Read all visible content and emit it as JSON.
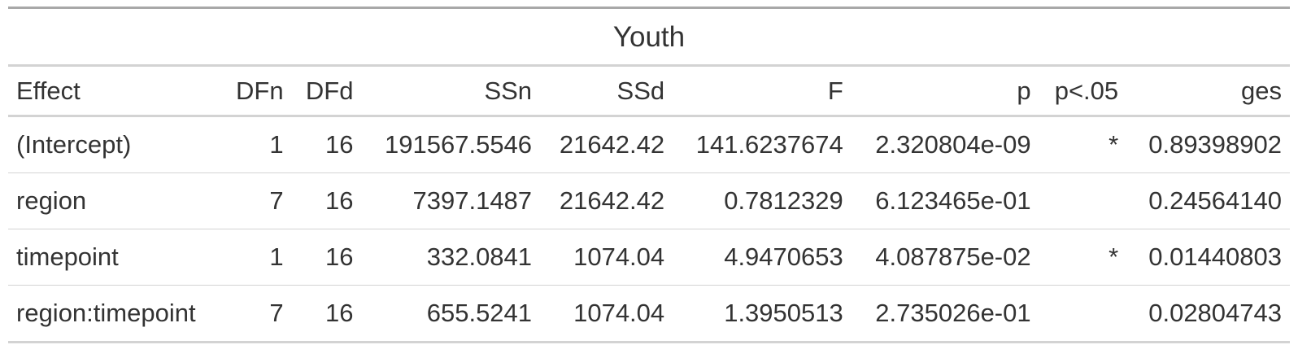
{
  "table": {
    "title": "Youth",
    "columns": [
      {
        "label": "Effect",
        "align": "left"
      },
      {
        "label": "DFn",
        "align": "right"
      },
      {
        "label": "DFd",
        "align": "right"
      },
      {
        "label": "SSn",
        "align": "right"
      },
      {
        "label": "SSd",
        "align": "right"
      },
      {
        "label": "F",
        "align": "right"
      },
      {
        "label": "p",
        "align": "right"
      },
      {
        "label": "p<.05",
        "align": "right"
      },
      {
        "label": "ges",
        "align": "right"
      }
    ],
    "rows": [
      {
        "cells": [
          "(Intercept)",
          "1",
          "16",
          "191567.5546",
          "21642.42",
          "141.6237674",
          "2.320804e-09",
          "*",
          "0.89398902"
        ]
      },
      {
        "cells": [
          "region",
          "7",
          "16",
          "7397.1487",
          "21642.42",
          "0.7812329",
          "6.123465e-01",
          "",
          "0.24564140"
        ]
      },
      {
        "cells": [
          "timepoint",
          "1",
          "16",
          "332.0841",
          "1074.04",
          "4.9470653",
          "4.087875e-02",
          "*",
          "0.01440803"
        ]
      },
      {
        "cells": [
          "region:timepoint",
          "7",
          "16",
          "655.5241",
          "1074.04",
          "1.3950513",
          "2.735026e-01",
          "",
          "0.02804743"
        ]
      }
    ]
  }
}
